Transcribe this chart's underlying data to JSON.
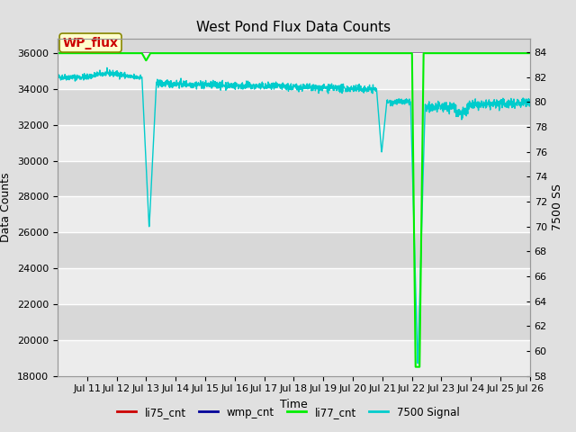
{
  "title": "West Pond Flux Data Counts",
  "xlabel": "Time",
  "ylabel_left": "Data Counts",
  "ylabel_right": "7500 SS",
  "ylim_left": [
    18000,
    36800
  ],
  "ylim_right": [
    58,
    85.077
  ],
  "yticks_left": [
    18000,
    20000,
    22000,
    24000,
    26000,
    28000,
    30000,
    32000,
    34000,
    36000
  ],
  "yticks_right": [
    58,
    60,
    62,
    64,
    66,
    68,
    70,
    72,
    74,
    76,
    78,
    80,
    82,
    84
  ],
  "xtick_labels": [
    "Jul 11",
    "Jul 12",
    "Jul 13",
    "Jul 14",
    "Jul 15",
    "Jul 16",
    "Jul 17",
    "Jul 18",
    "Jul 19",
    "Jul 20",
    "Jul 21",
    "Jul 22",
    "Jul 23",
    "Jul 24",
    "Jul 25",
    "Jul 26"
  ],
  "bg_color": "#e0e0e0",
  "plot_bg_color_light": "#ececec",
  "plot_bg_color_dark": "#d8d8d8",
  "li77_color": "#00ee00",
  "cyan_color": "#00cccc",
  "li75_color": "#cc0000",
  "wmp_color": "#000099",
  "annotation_text": "WP_flux",
  "annotation_text_color": "#cc0000",
  "annotation_bg": "#ffffcc",
  "annotation_edge": "#888800",
  "title_fontsize": 11,
  "axis_label_fontsize": 9,
  "tick_fontsize": 8
}
